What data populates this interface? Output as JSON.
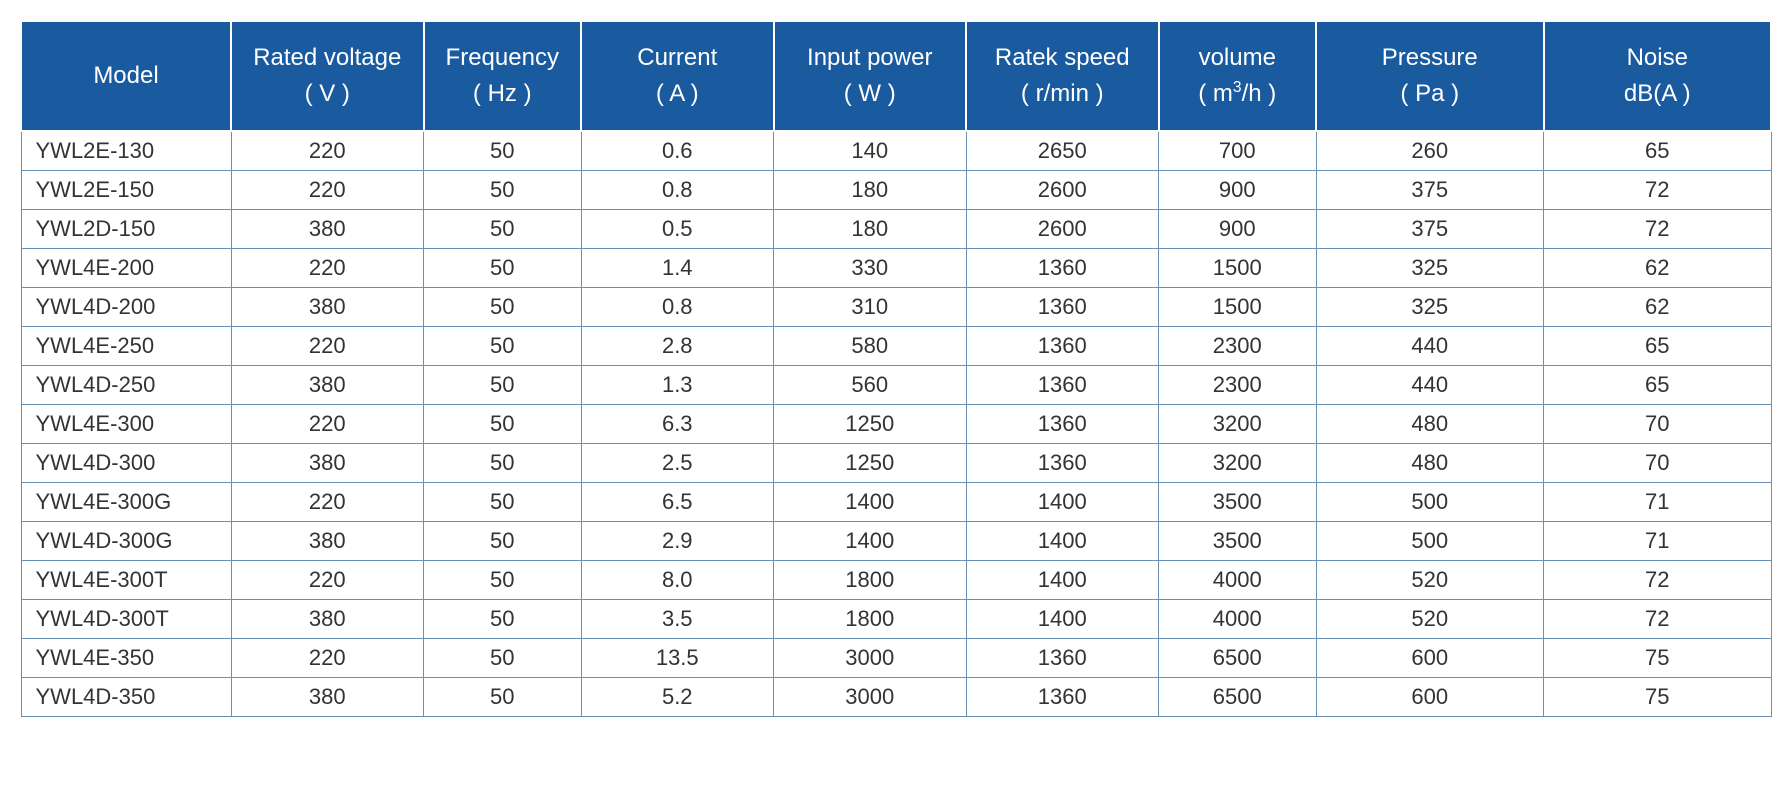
{
  "table": {
    "header_bg": "#1a5a9e",
    "header_text_color": "#ffffff",
    "border_color": "#6a8fb5",
    "cell_bg": "#ffffff",
    "header_fontsize": 24,
    "cell_fontsize": 22,
    "columns": [
      {
        "key": "model",
        "line1": "Model",
        "line2": "",
        "width_pct": 12,
        "align": "left"
      },
      {
        "key": "voltage",
        "line1": "Rated voltage",
        "line2": "( V )",
        "width_pct": 11,
        "align": "center"
      },
      {
        "key": "freq",
        "line1": "Frequency",
        "line2": "( Hz )",
        "width_pct": 9,
        "align": "center"
      },
      {
        "key": "current",
        "line1": "Current",
        "line2": "( A )",
        "width_pct": 11,
        "align": "center"
      },
      {
        "key": "power",
        "line1": "Input power",
        "line2": "( W )",
        "width_pct": 11,
        "align": "center"
      },
      {
        "key": "speed",
        "line1": "Ratek speed",
        "line2": "( r/min )",
        "width_pct": 11,
        "align": "center"
      },
      {
        "key": "volume",
        "line1": "volume",
        "line2": "( m³/h )",
        "width_pct": 9,
        "align": "center"
      },
      {
        "key": "pressure",
        "line1": "Pressure",
        "line2": "( Pa )",
        "width_pct": 13,
        "align": "center"
      },
      {
        "key": "noise",
        "line1": "Noise",
        "line2": "dB(A )",
        "width_pct": 13,
        "align": "center"
      }
    ],
    "rows": [
      [
        "YWL2E-130",
        "220",
        "50",
        "0.6",
        "140",
        "2650",
        "700",
        "260",
        "65"
      ],
      [
        "YWL2E-150",
        "220",
        "50",
        "0.8",
        "180",
        "2600",
        "900",
        "375",
        "72"
      ],
      [
        "YWL2D-150",
        "380",
        "50",
        "0.5",
        "180",
        "2600",
        "900",
        "375",
        "72"
      ],
      [
        "YWL4E-200",
        "220",
        "50",
        "1.4",
        "330",
        "1360",
        "1500",
        "325",
        "62"
      ],
      [
        "YWL4D-200",
        "380",
        "50",
        "0.8",
        "310",
        "1360",
        "1500",
        "325",
        "62"
      ],
      [
        "YWL4E-250",
        "220",
        "50",
        "2.8",
        "580",
        "1360",
        "2300",
        "440",
        "65"
      ],
      [
        "YWL4D-250",
        "380",
        "50",
        "1.3",
        "560",
        "1360",
        "2300",
        "440",
        "65"
      ],
      [
        "YWL4E-300",
        "220",
        "50",
        "6.3",
        "1250",
        "1360",
        "3200",
        "480",
        "70"
      ],
      [
        "YWL4D-300",
        "380",
        "50",
        "2.5",
        "1250",
        "1360",
        "3200",
        "480",
        "70"
      ],
      [
        "YWL4E-300G",
        "220",
        "50",
        "6.5",
        "1400",
        "1400",
        "3500",
        "500",
        "71"
      ],
      [
        "YWL4D-300G",
        "380",
        "50",
        "2.9",
        "1400",
        "1400",
        "3500",
        "500",
        "71"
      ],
      [
        "YWL4E-300T",
        "220",
        "50",
        "8.0",
        "1800",
        "1400",
        "4000",
        "520",
        "72"
      ],
      [
        "YWL4D-300T",
        "380",
        "50",
        "3.5",
        "1800",
        "1400",
        "4000",
        "520",
        "72"
      ],
      [
        "YWL4E-350",
        "220",
        "50",
        "13.5",
        "3000",
        "1360",
        "6500",
        "600",
        "75"
      ],
      [
        "YWL4D-350",
        "380",
        "50",
        "5.2",
        "3000",
        "1360",
        "6500",
        "600",
        "75"
      ]
    ]
  }
}
